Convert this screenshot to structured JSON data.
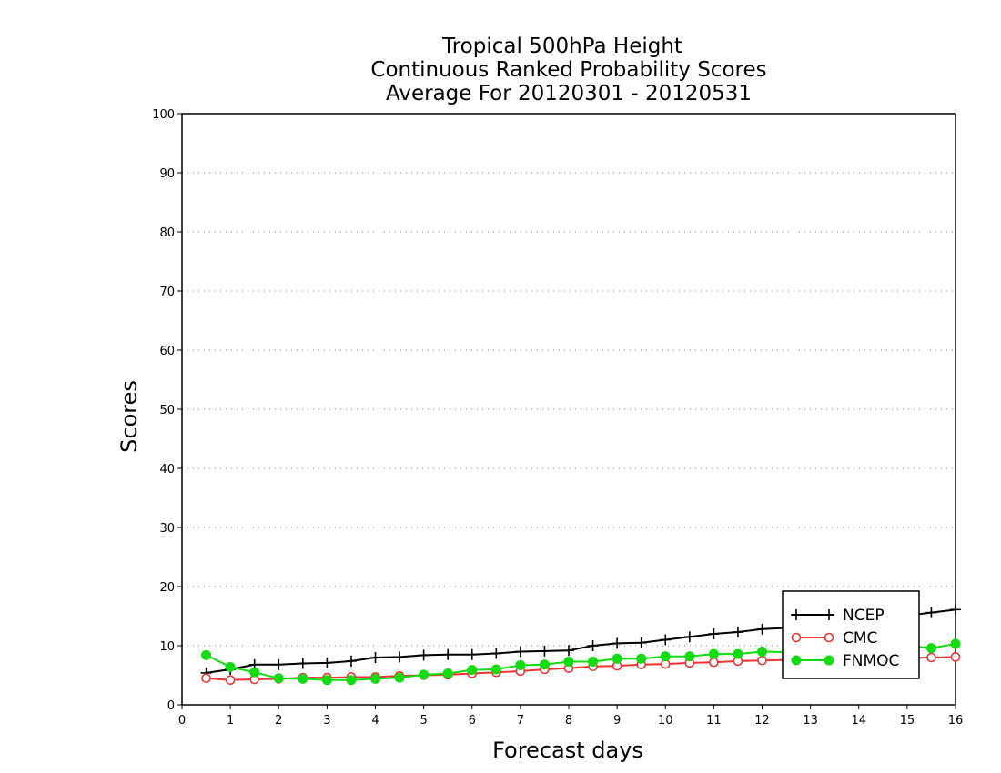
{
  "chart_data": {
    "type": "line",
    "title_lines": [
      "Tropical 500hPa Height",
      "Continuous Ranked Probability Scores",
      "Average For 20120301 - 20120531"
    ],
    "xlabel": "Forecast days",
    "ylabel": "Scores",
    "xlim": [
      0,
      16
    ],
    "ylim": [
      0,
      100
    ],
    "xticks": [
      0,
      1,
      2,
      3,
      4,
      5,
      6,
      7,
      8,
      9,
      10,
      11,
      12,
      13,
      14,
      15,
      16
    ],
    "yticks": [
      0,
      10,
      20,
      30,
      40,
      50,
      60,
      70,
      80,
      90,
      100
    ],
    "grid": "horizontal dotted",
    "legend_position": "bottom-right",
    "x": [
      0.5,
      1,
      1.5,
      2,
      2.5,
      3,
      3.5,
      4,
      4.5,
      5,
      5.5,
      6,
      6.5,
      7,
      7.5,
      8,
      8.5,
      9,
      9.5,
      10,
      10.5,
      11,
      11.5,
      12,
      12.5,
      13,
      13.5,
      14,
      14.5,
      15,
      15.5,
      16
    ],
    "series": [
      {
        "name": "NCEP",
        "color": "#000000",
        "marker": "plus",
        "values": [
          5.4,
          6.0,
          6.8,
          6.8,
          7.0,
          7.1,
          7.4,
          8.0,
          8.1,
          8.4,
          8.5,
          8.5,
          8.7,
          9.0,
          9.1,
          9.2,
          10.0,
          10.4,
          10.5,
          11.0,
          11.5,
          12.0,
          12.3,
          12.8,
          13.0,
          13.5,
          13.9,
          14.3,
          14.7,
          15.1,
          15.6,
          16.1
        ]
      },
      {
        "name": "CMC",
        "color": "#ee3333",
        "marker": "open-circle",
        "values": [
          4.5,
          4.2,
          4.3,
          4.4,
          4.6,
          4.6,
          4.7,
          4.7,
          4.9,
          5.0,
          5.1,
          5.3,
          5.5,
          5.7,
          6.0,
          6.2,
          6.5,
          6.6,
          6.8,
          6.9,
          7.1,
          7.2,
          7.4,
          7.5,
          7.6,
          7.7,
          7.8,
          7.8,
          7.9,
          7.9,
          8.0,
          8.1
        ]
      },
      {
        "name": "FNMOC",
        "color": "#11dd11",
        "marker": "filled-circle",
        "values": [
          8.4,
          6.4,
          5.5,
          4.5,
          4.4,
          4.2,
          4.2,
          4.4,
          4.6,
          5.1,
          5.3,
          5.9,
          6.0,
          6.7,
          6.8,
          7.3,
          7.3,
          7.8,
          7.8,
          8.2,
          8.2,
          8.6,
          8.6,
          9.0,
          8.9,
          9.3,
          9.3,
          9.6,
          9.8,
          10.0,
          9.6,
          10.3
        ]
      }
    ]
  }
}
